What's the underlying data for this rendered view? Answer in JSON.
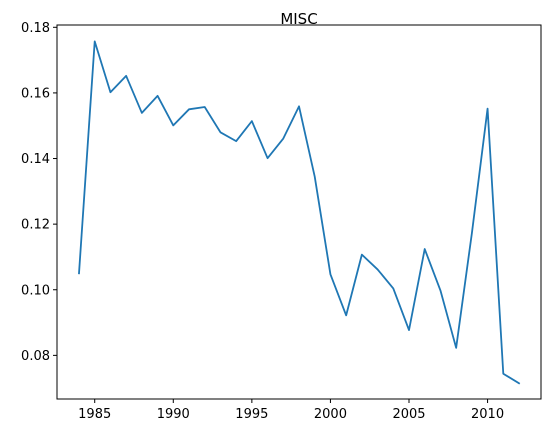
{
  "chart_data": {
    "type": "line",
    "title": "MISC",
    "xlabel": "",
    "ylabel": "",
    "xlim": [
      1982.6,
      2013.4
    ],
    "ylim": [
      0.0667,
      0.1807
    ],
    "xticks": [
      1985,
      1990,
      1995,
      2000,
      2005,
      2010
    ],
    "yticks": [
      0.08,
      0.1,
      0.12,
      0.14,
      0.16,
      0.18
    ],
    "xtick_labels": [
      "1985",
      "1990",
      "1995",
      "2000",
      "2005",
      "2010"
    ],
    "ytick_labels": [
      "0.08",
      "0.10",
      "0.12",
      "0.14",
      "0.16",
      "0.18"
    ],
    "grid": false,
    "line_color": "#1f77b4",
    "series": [
      {
        "x": [
          1984,
          1985,
          1986,
          1987,
          1988,
          1989,
          1990,
          1991,
          1992,
          1993,
          1994,
          1995,
          1996,
          1997,
          1998,
          1999,
          2000,
          2001,
          2002,
          2003,
          2004,
          2005,
          2006,
          2007,
          2008,
          2009,
          2010,
          2011,
          2012
        ],
        "values": [
          0.105,
          0.1757,
          0.1602,
          0.1652,
          0.1539,
          0.1591,
          0.1501,
          0.155,
          0.1557,
          0.148,
          0.1453,
          0.1514,
          0.1401,
          0.1461,
          0.1559,
          0.1345,
          0.1047,
          0.0922,
          0.1107,
          0.1062,
          0.1004,
          0.0877,
          0.1124,
          0.0998,
          0.0823,
          0.1172,
          0.1552,
          0.0744,
          0.0715
        ]
      }
    ]
  }
}
